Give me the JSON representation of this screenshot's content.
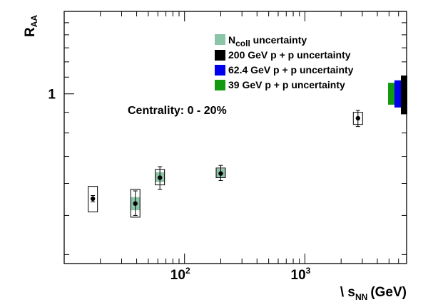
{
  "chart_data": {
    "type": "scatter",
    "title": "",
    "xlabel": {
      "main": "\\ s",
      "sub": "NN",
      "unit": "(GeV)"
    },
    "ylabel": {
      "main": "R",
      "sub": "AA"
    },
    "x_scale": "log",
    "y_scale": "log",
    "xlim": [
      10,
      7000
    ],
    "ylim": [
      0.38,
      1.6
    ],
    "x_tick_labels": [
      {
        "value": 100,
        "base": "10",
        "exp": "2"
      },
      {
        "value": 1000,
        "base": "10",
        "exp": "3"
      }
    ],
    "y_tick_labels": [
      {
        "value": 1,
        "label": "1"
      }
    ],
    "annotation": "Centrality: 0 - 20%",
    "legend": {
      "placement": "top-right",
      "entries": [
        {
          "main": "N",
          "sub": "coll",
          "rest": " uncertainty",
          "color": "#8cc4a8"
        },
        {
          "main": "200 GeV p + p uncertainty",
          "color": "#000000"
        },
        {
          "main": "62.4 GeV p + p uncertainty",
          "color": "#0000ee"
        },
        {
          "main": "39 GeV p + p uncertainty",
          "color": "#119911"
        }
      ]
    },
    "series": [
      {
        "points": [
          {
            "x": 17.3,
            "y": 0.55,
            "stat": [
              0.54,
              0.56
            ],
            "sys": [
              0.51,
              0.59
            ],
            "ncoll": null
          },
          {
            "x": 39,
            "y": 0.535,
            "stat": [
              0.5,
              0.575
            ],
            "sys": [
              0.495,
              0.58
            ],
            "ncoll": [
              0.515,
              0.555
            ]
          },
          {
            "x": 62.4,
            "y": 0.62,
            "stat": [
              0.58,
              0.66
            ],
            "sys": [
              0.595,
              0.65
            ],
            "ncoll": [
              0.605,
              0.64
            ]
          },
          {
            "x": 200,
            "y": 0.635,
            "stat": [
              0.61,
              0.665
            ],
            "sys": [
              0.62,
              0.655
            ],
            "ncoll": [
              0.622,
              0.652
            ]
          },
          {
            "x": 2760,
            "y": 0.87,
            "stat": [
              0.83,
              0.91
            ],
            "sys": [
              0.84,
              0.9
            ],
            "ncoll": null
          }
        ]
      }
    ],
    "reference_bands": [
      {
        "name": "39 GeV p + p uncertainty",
        "color": "#119911",
        "range": [
          0.94,
          1.065
        ]
      },
      {
        "name": "62.4 GeV p + p uncertainty",
        "color": "#0000ee",
        "range": [
          0.925,
          1.08
        ]
      },
      {
        "name": "200 GeV p + p uncertainty",
        "color": "#000000",
        "range": [
          0.89,
          1.11
        ]
      }
    ]
  }
}
